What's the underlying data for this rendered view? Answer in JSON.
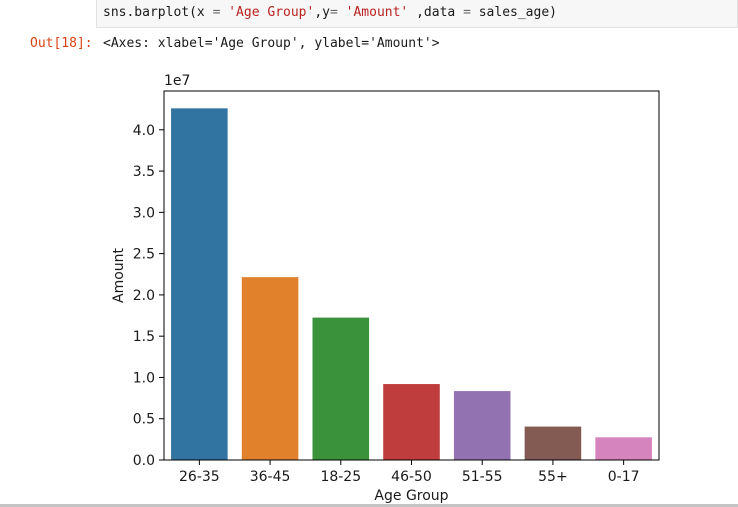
{
  "code_cell": {
    "parts": [
      {
        "t": "sns.barplot(x ",
        "c": "code"
      },
      {
        "t": "=",
        "c": "op"
      },
      {
        "t": " ",
        "c": "code"
      },
      {
        "t": "'Age Group'",
        "c": "str"
      },
      {
        "t": ",y",
        "c": "code"
      },
      {
        "t": "=",
        "c": "op"
      },
      {
        "t": " ",
        "c": "code"
      },
      {
        "t": "'Amount'",
        "c": "str"
      },
      {
        "t": " ,data ",
        "c": "code"
      },
      {
        "t": "=",
        "c": "op"
      },
      {
        "t": " sales_age)",
        "c": "code"
      }
    ]
  },
  "output": {
    "prompt": "Out[18]:",
    "text": "<Axes: xlabel='Age Group', ylabel='Amount'>"
  },
  "chart_data": {
    "type": "bar",
    "categories": [
      "26-35",
      "36-45",
      "18-25",
      "46-50",
      "51-55",
      "55+",
      "0-17"
    ],
    "values": [
      42600000,
      22150000,
      17250000,
      9200000,
      8350000,
      4050000,
      2750000
    ],
    "colors": [
      "#3274a1",
      "#e1812c",
      "#3a923a",
      "#c03d3e",
      "#9372b2",
      "#845b53",
      "#d684bd"
    ],
    "xlabel": "Age Group",
    "ylabel": "Amount",
    "offset_label": "1e7",
    "ylim": [
      0,
      44700000
    ],
    "yticks": [
      0,
      5000000,
      10000000,
      15000000,
      20000000,
      25000000,
      30000000,
      35000000,
      40000000
    ],
    "ytick_labels": [
      "0.0",
      "0.5",
      "1.0",
      "1.5",
      "2.0",
      "2.5",
      "3.0",
      "3.5",
      "4.0"
    ],
    "grid": false,
    "legend": "none"
  }
}
